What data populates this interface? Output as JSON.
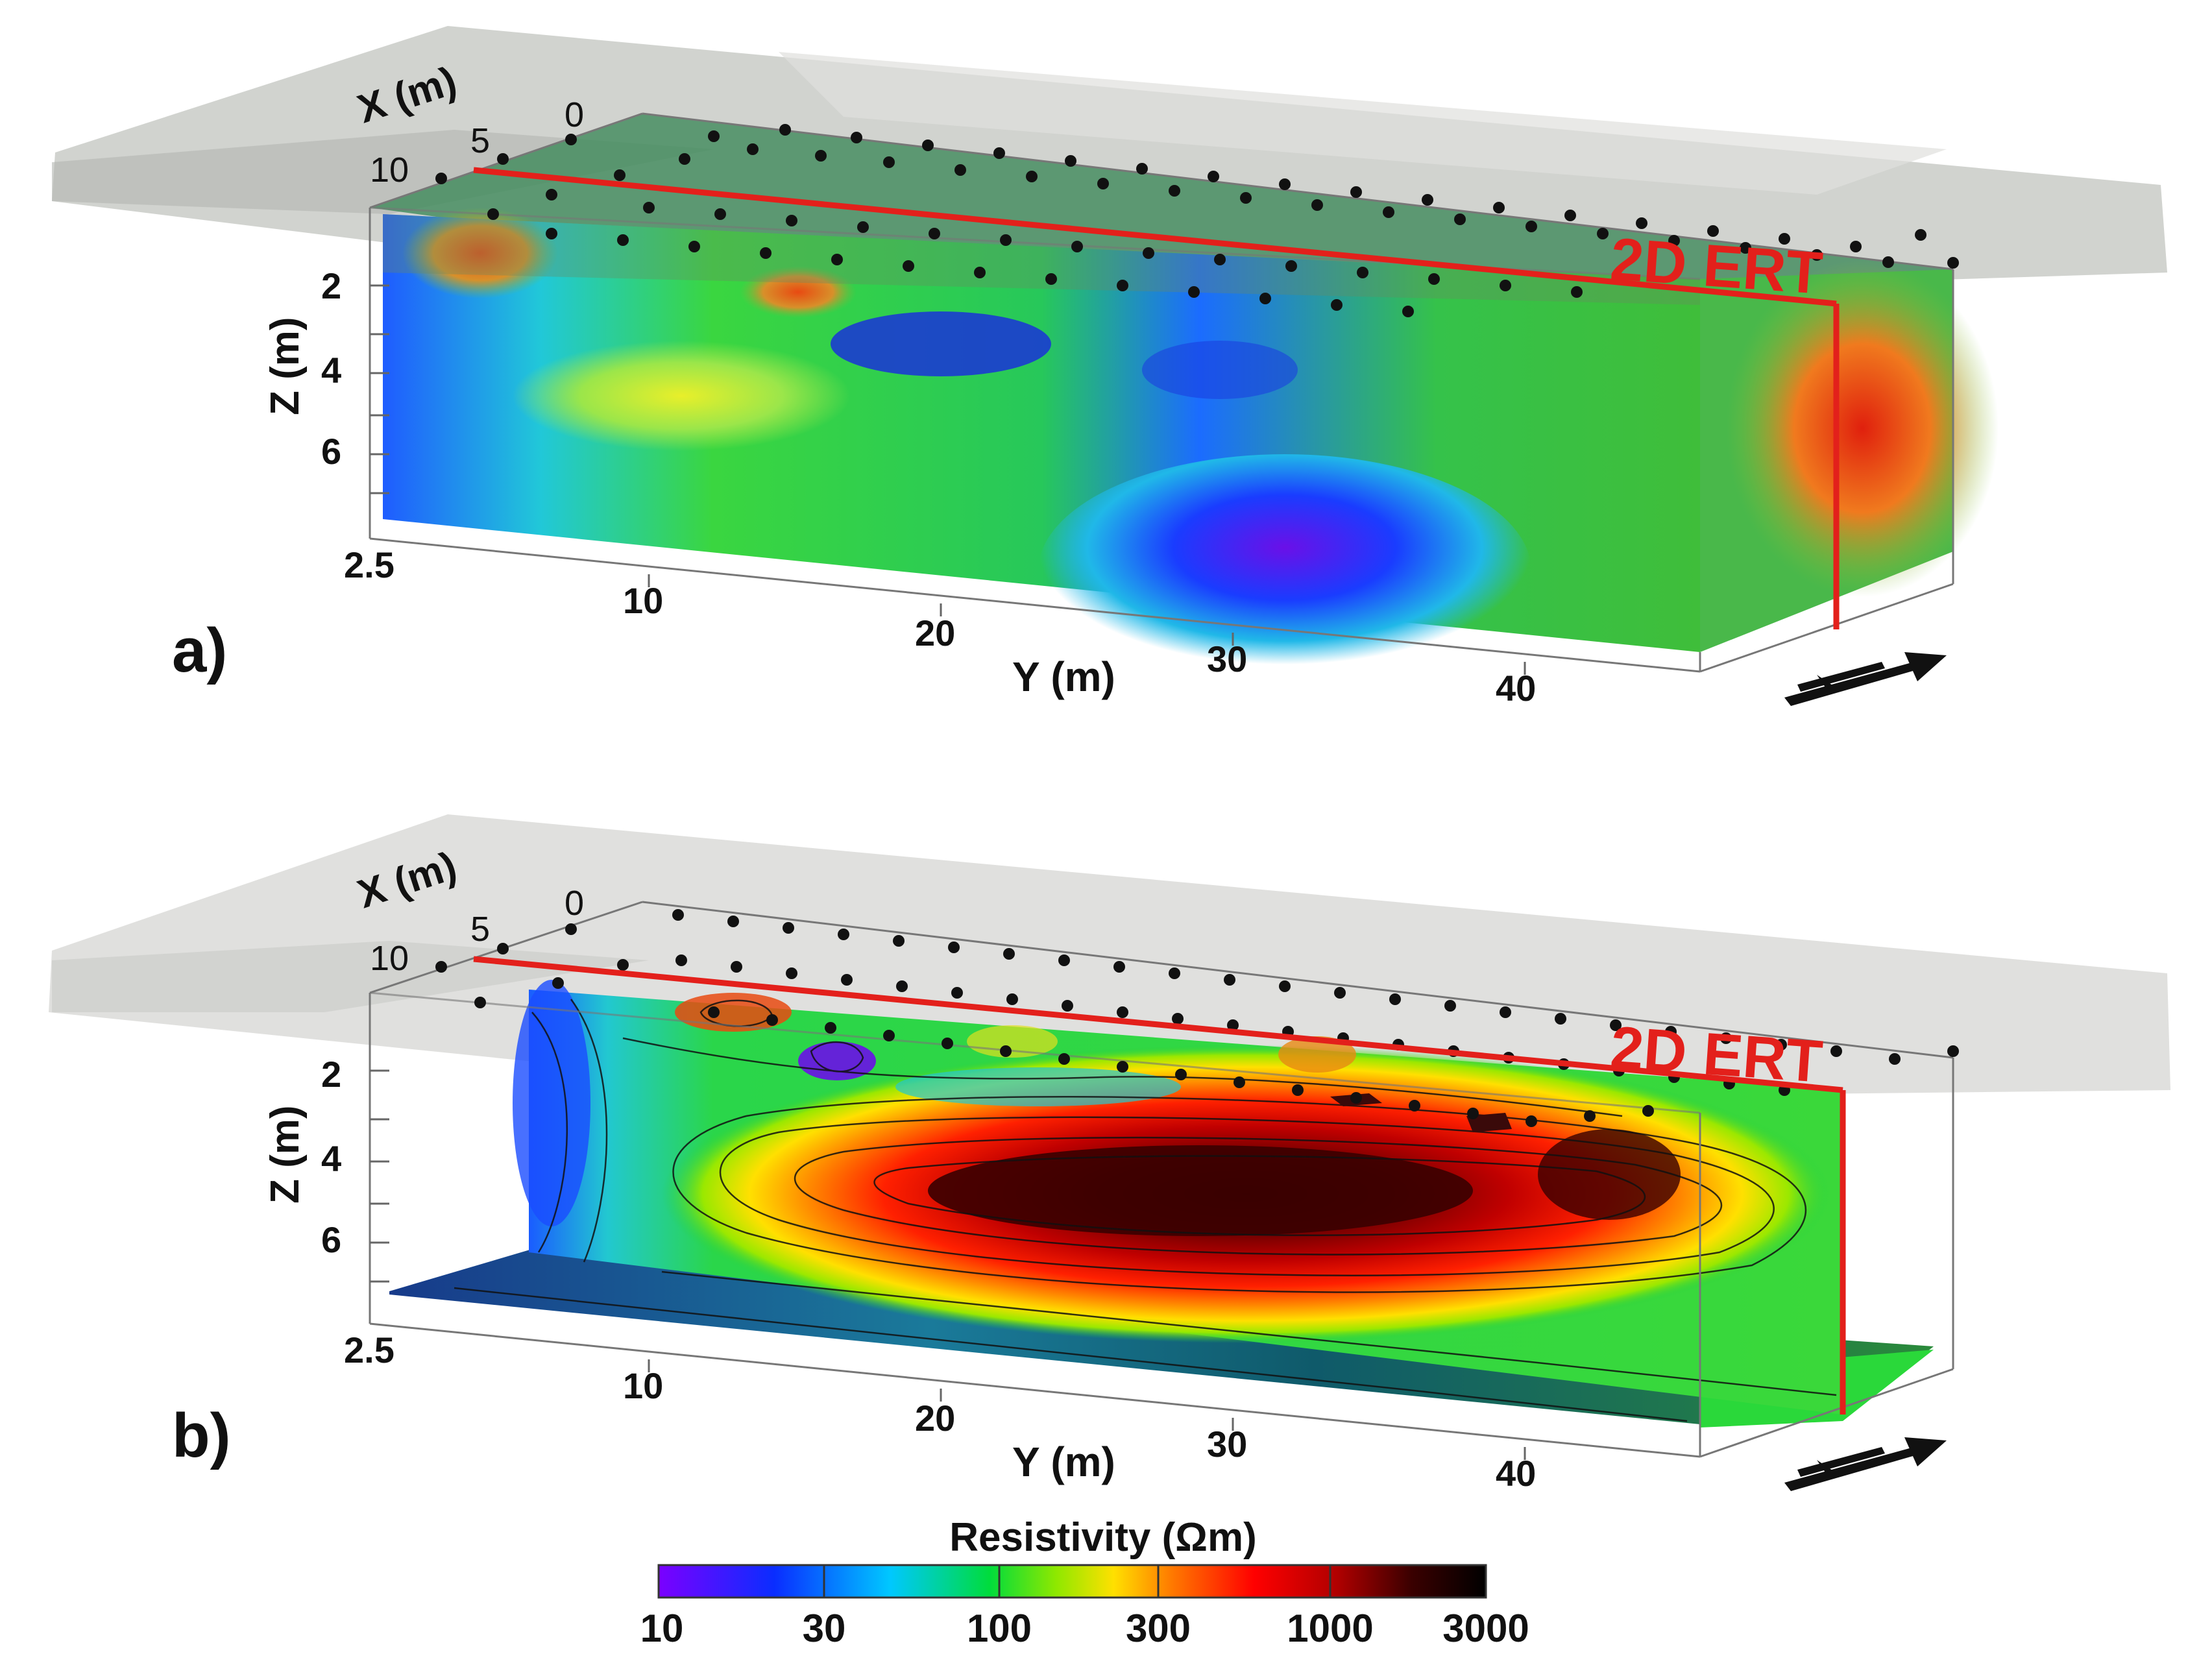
{
  "panels": [
    {
      "id": "a",
      "panel_label": "a)",
      "axes": {
        "x_label": "X (m)",
        "x_ticks": [
          "0",
          "5",
          "10"
        ],
        "y_label": "Y (m)",
        "y_ticks": [
          "2.5",
          "10",
          "20",
          "30",
          "40"
        ],
        "z_label": "Z (m)",
        "z_ticks": [
          "2",
          "4",
          "6"
        ]
      },
      "profile_label": "2D ERT",
      "view": "3D resistivity volume"
    },
    {
      "id": "b",
      "panel_label": "b)",
      "axes": {
        "x_label": "X (m)",
        "x_ticks": [
          "0",
          "5",
          "10"
        ],
        "y_label": "Y (m)",
        "y_ticks": [
          "2.5",
          "10",
          "20",
          "30",
          "40"
        ],
        "z_label": "Z (m)",
        "z_ticks": [
          "2",
          "4",
          "6"
        ]
      },
      "profile_label": "2D ERT",
      "view": "2D resistivity section with contours"
    }
  ],
  "colorbar": {
    "title": "Resistivity (Ωm)",
    "tick_labels": [
      "10",
      "30",
      "100",
      "300",
      "1000",
      "3000"
    ],
    "scale": "log",
    "colors": [
      "#7b00ff",
      "#0a2dff",
      "#00c8ff",
      "#00dc3c",
      "#b4f000",
      "#ffe000",
      "#ff7a00",
      "#ff0000",
      "#b00000",
      "#3a0000",
      "#000000"
    ]
  },
  "colors": {
    "profile_line": "#e3201b",
    "electrode": "#111111"
  }
}
